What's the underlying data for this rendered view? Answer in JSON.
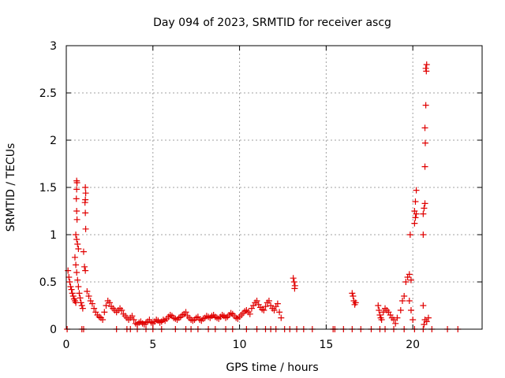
{
  "chart_data": {
    "type": "scatter",
    "title": "Day 094 of 2023, SRMTID for receiver ascg",
    "xlabel": "GPS time / hours",
    "ylabel": "SRMTID / TECUs",
    "xlim": [
      0,
      24
    ],
    "ylim": [
      0,
      3
    ],
    "xticks": [
      0,
      5,
      10,
      15,
      20
    ],
    "yticks": [
      0,
      0.5,
      1,
      1.5,
      2,
      2.5,
      3
    ],
    "ytick_labels": [
      "0",
      "0.5",
      "1",
      "1.5",
      "2",
      "2.5",
      "3"
    ],
    "grid": true,
    "marker": "plus",
    "color": "#e00000",
    "series": [
      {
        "name": "SRMTID",
        "points": [
          [
            0.1,
            0.62
          ],
          [
            0.15,
            0.55
          ],
          [
            0.2,
            0.5
          ],
          [
            0.25,
            0.45
          ],
          [
            0.3,
            0.42
          ],
          [
            0.35,
            0.38
          ],
          [
            0.4,
            0.35
          ],
          [
            0.45,
            0.32
          ],
          [
            0.5,
            0.3
          ],
          [
            0.55,
            0.28
          ],
          [
            0.6,
            1.57
          ],
          [
            0.62,
            1.55
          ],
          [
            0.6,
            1.48
          ],
          [
            0.58,
            1.38
          ],
          [
            0.6,
            1.25
          ],
          [
            0.62,
            1.16
          ],
          [
            0.55,
            1.0
          ],
          [
            0.6,
            0.95
          ],
          [
            0.65,
            0.9
          ],
          [
            0.7,
            0.85
          ],
          [
            0.5,
            0.76
          ],
          [
            0.55,
            0.68
          ],
          [
            0.6,
            0.6
          ],
          [
            0.65,
            0.52
          ],
          [
            0.7,
            0.45
          ],
          [
            0.75,
            0.38
          ],
          [
            0.8,
            0.33
          ],
          [
            0.85,
            0.28
          ],
          [
            0.9,
            0.25
          ],
          [
            0.95,
            0.22
          ],
          [
            1.1,
            1.5
          ],
          [
            1.12,
            1.44
          ],
          [
            1.1,
            1.37
          ],
          [
            1.08,
            1.34
          ],
          [
            1.1,
            1.23
          ],
          [
            1.12,
            1.06
          ],
          [
            1.0,
            0.82
          ],
          [
            1.05,
            0.66
          ],
          [
            1.1,
            0.62
          ],
          [
            1.2,
            0.4
          ],
          [
            1.3,
            0.35
          ],
          [
            1.4,
            0.3
          ],
          [
            1.5,
            0.27
          ],
          [
            1.6,
            0.22
          ],
          [
            1.7,
            0.18
          ],
          [
            1.8,
            0.15
          ],
          [
            1.9,
            0.13
          ],
          [
            2.0,
            0.12
          ],
          [
            2.1,
            0.1
          ],
          [
            2.2,
            0.18
          ],
          [
            2.3,
            0.25
          ],
          [
            2.4,
            0.3
          ],
          [
            2.5,
            0.28
          ],
          [
            2.6,
            0.24
          ],
          [
            2.7,
            0.22
          ],
          [
            2.8,
            0.2
          ],
          [
            2.9,
            0.18
          ],
          [
            3.0,
            0.2
          ],
          [
            3.1,
            0.22
          ],
          [
            3.2,
            0.2
          ],
          [
            3.3,
            0.16
          ],
          [
            3.4,
            0.14
          ],
          [
            3.5,
            0.12
          ],
          [
            3.6,
            0.1
          ],
          [
            3.7,
            0.12
          ],
          [
            3.8,
            0.14
          ],
          [
            3.9,
            0.1
          ],
          [
            4.0,
            0.06
          ],
          [
            4.1,
            0.05
          ],
          [
            4.2,
            0.07
          ],
          [
            4.3,
            0.08
          ],
          [
            4.4,
            0.06
          ],
          [
            4.5,
            0.05
          ],
          [
            4.6,
            0.07
          ],
          [
            4.7,
            0.08
          ],
          [
            4.8,
            0.1
          ],
          [
            4.9,
            0.07
          ],
          [
            5.0,
            0.06
          ],
          [
            5.1,
            0.08
          ],
          [
            5.2,
            0.1
          ],
          [
            5.3,
            0.09
          ],
          [
            5.4,
            0.07
          ],
          [
            5.5,
            0.08
          ],
          [
            5.6,
            0.1
          ],
          [
            5.7,
            0.09
          ],
          [
            5.8,
            0.11
          ],
          [
            5.9,
            0.13
          ],
          [
            6.0,
            0.15
          ],
          [
            6.1,
            0.14
          ],
          [
            6.2,
            0.12
          ],
          [
            6.3,
            0.11
          ],
          [
            6.4,
            0.1
          ],
          [
            6.5,
            0.12
          ],
          [
            6.6,
            0.13
          ],
          [
            6.7,
            0.15
          ],
          [
            6.8,
            0.16
          ],
          [
            6.9,
            0.18
          ],
          [
            7.0,
            0.14
          ],
          [
            7.1,
            0.12
          ],
          [
            7.2,
            0.1
          ],
          [
            7.3,
            0.09
          ],
          [
            7.4,
            0.1
          ],
          [
            7.5,
            0.12
          ],
          [
            7.6,
            0.13
          ],
          [
            7.7,
            0.1
          ],
          [
            7.8,
            0.09
          ],
          [
            7.9,
            0.11
          ],
          [
            8.0,
            0.12
          ],
          [
            8.1,
            0.14
          ],
          [
            8.2,
            0.13
          ],
          [
            8.3,
            0.12
          ],
          [
            8.4,
            0.14
          ],
          [
            8.5,
            0.15
          ],
          [
            8.6,
            0.13
          ],
          [
            8.7,
            0.12
          ],
          [
            8.8,
            0.11
          ],
          [
            8.9,
            0.13
          ],
          [
            9.0,
            0.15
          ],
          [
            9.1,
            0.14
          ],
          [
            9.2,
            0.12
          ],
          [
            9.3,
            0.13
          ],
          [
            9.4,
            0.15
          ],
          [
            9.5,
            0.17
          ],
          [
            9.6,
            0.16
          ],
          [
            9.7,
            0.14
          ],
          [
            9.8,
            0.12
          ],
          [
            9.9,
            0.11
          ],
          [
            10.0,
            0.13
          ],
          [
            10.1,
            0.15
          ],
          [
            10.2,
            0.17
          ],
          [
            10.3,
            0.19
          ],
          [
            10.4,
            0.2
          ],
          [
            10.5,
            0.18
          ],
          [
            10.6,
            0.16
          ],
          [
            10.7,
            0.22
          ],
          [
            10.8,
            0.25
          ],
          [
            10.9,
            0.28
          ],
          [
            11.0,
            0.3
          ],
          [
            11.1,
            0.26
          ],
          [
            11.2,
            0.23
          ],
          [
            11.3,
            0.21
          ],
          [
            11.4,
            0.2
          ],
          [
            11.5,
            0.24
          ],
          [
            11.6,
            0.28
          ],
          [
            11.7,
            0.3
          ],
          [
            11.8,
            0.25
          ],
          [
            11.9,
            0.22
          ],
          [
            12.0,
            0.2
          ],
          [
            12.1,
            0.24
          ],
          [
            12.2,
            0.27
          ],
          [
            12.3,
            0.18
          ],
          [
            12.4,
            0.12
          ],
          [
            13.1,
            0.54
          ],
          [
            13.15,
            0.5
          ],
          [
            13.2,
            0.46
          ],
          [
            13.18,
            0.43
          ],
          [
            16.5,
            0.38
          ],
          [
            16.55,
            0.35
          ],
          [
            16.6,
            0.3
          ],
          [
            16.65,
            0.26
          ],
          [
            16.7,
            0.28
          ],
          [
            18.0,
            0.25
          ],
          [
            18.05,
            0.2
          ],
          [
            18.1,
            0.15
          ],
          [
            18.15,
            0.12
          ],
          [
            18.2,
            0.1
          ],
          [
            18.3,
            0.18
          ],
          [
            18.4,
            0.22
          ],
          [
            18.5,
            0.2
          ],
          [
            18.6,
            0.18
          ],
          [
            18.7,
            0.15
          ],
          [
            18.8,
            0.12
          ],
          [
            18.9,
            0.1
          ],
          [
            19.0,
            0.06
          ],
          [
            19.1,
            0.12
          ],
          [
            19.3,
            0.2
          ],
          [
            19.4,
            0.3
          ],
          [
            19.5,
            0.35
          ],
          [
            19.6,
            0.5
          ],
          [
            19.7,
            0.55
          ],
          [
            19.8,
            0.58
          ],
          [
            19.9,
            0.52
          ],
          [
            19.85,
            1.0
          ],
          [
            19.8,
            0.3
          ],
          [
            19.9,
            0.2
          ],
          [
            20.0,
            0.1
          ],
          [
            20.1,
            1.25
          ],
          [
            20.15,
            1.35
          ],
          [
            20.2,
            1.47
          ],
          [
            20.1,
            1.12
          ],
          [
            20.15,
            1.18
          ],
          [
            20.2,
            1.22
          ],
          [
            20.6,
            1.0
          ],
          [
            20.65,
            1.28
          ],
          [
            20.7,
            1.33
          ],
          [
            20.6,
            1.22
          ],
          [
            20.7,
            1.72
          ],
          [
            20.72,
            1.97
          ],
          [
            20.7,
            2.13
          ],
          [
            20.75,
            2.37
          ],
          [
            20.78,
            2.73
          ],
          [
            20.8,
            2.8
          ],
          [
            20.75,
            2.76
          ],
          [
            20.6,
            0.25
          ],
          [
            20.7,
            0.1
          ],
          [
            20.8,
            0.08
          ],
          [
            20.9,
            0.12
          ],
          [
            20.65,
            0.05
          ],
          [
            0.05,
            0.0
          ],
          [
            0.9,
            0.0
          ],
          [
            1.0,
            0.0
          ],
          [
            2.9,
            0.0
          ],
          [
            3.5,
            0.0
          ],
          [
            3.7,
            0.0
          ],
          [
            4.1,
            0.0
          ],
          [
            4.6,
            0.0
          ],
          [
            5.0,
            0.0
          ],
          [
            5.5,
            0.0
          ],
          [
            6.3,
            0.0
          ],
          [
            6.9,
            0.0
          ],
          [
            7.2,
            0.0
          ],
          [
            7.6,
            0.0
          ],
          [
            8.2,
            0.0
          ],
          [
            8.6,
            0.0
          ],
          [
            9.2,
            0.0
          ],
          [
            9.6,
            0.0
          ],
          [
            10.4,
            0.0
          ],
          [
            11.0,
            0.0
          ],
          [
            11.5,
            0.0
          ],
          [
            11.8,
            0.0
          ],
          [
            12.1,
            0.0
          ],
          [
            12.6,
            0.0
          ],
          [
            12.9,
            0.0
          ],
          [
            13.3,
            0.0
          ],
          [
            13.7,
            0.0
          ],
          [
            14.2,
            0.0
          ],
          [
            15.4,
            0.0
          ],
          [
            15.5,
            0.0
          ],
          [
            16.0,
            0.0
          ],
          [
            16.5,
            0.0
          ],
          [
            17.0,
            0.0
          ],
          [
            17.6,
            0.0
          ],
          [
            18.1,
            0.0
          ],
          [
            18.4,
            0.0
          ],
          [
            18.9,
            0.0
          ],
          [
            19.5,
            0.0
          ],
          [
            20.1,
            0.0
          ],
          [
            20.6,
            0.0
          ],
          [
            21.1,
            0.0
          ],
          [
            22.0,
            0.0
          ],
          [
            22.6,
            0.0
          ]
        ]
      }
    ]
  }
}
